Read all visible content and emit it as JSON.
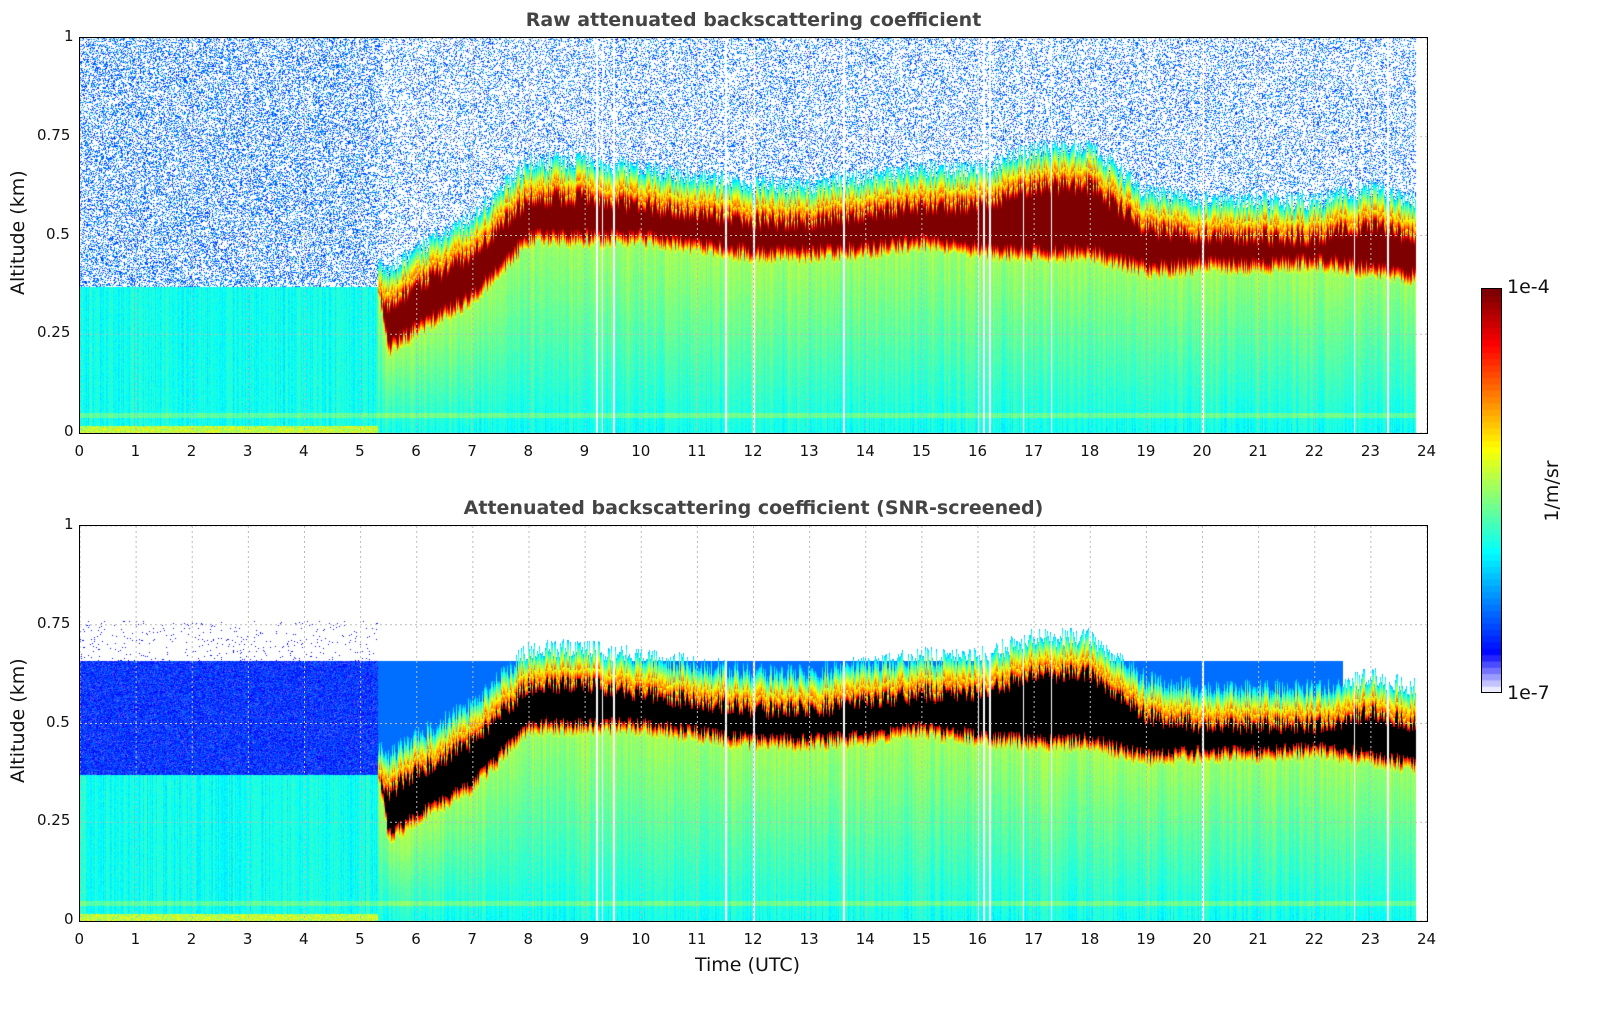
{
  "chart_data": [
    {
      "type": "heatmap",
      "title": "Raw attenuated backscattering coefficient",
      "xlabel": "",
      "ylabel": "Altitude (km)",
      "xlim": [
        0,
        24
      ],
      "ylim": [
        0,
        1
      ],
      "xticks": [
        "0",
        "1",
        "2",
        "3",
        "4",
        "5",
        "6",
        "7",
        "8",
        "9",
        "10",
        "11",
        "12",
        "13",
        "14",
        "15",
        "16",
        "17",
        "18",
        "19",
        "20",
        "21",
        "22",
        "23",
        "24"
      ],
      "yticks": [
        "0",
        "0.25",
        "0.5",
        "0.75",
        "1"
      ],
      "grid": true,
      "screened": false
    },
    {
      "type": "heatmap",
      "title": "Attenuated backscattering coefficient (SNR-screened)",
      "xlabel": "Time (UTC)",
      "ylabel": "Altitude (km)",
      "xlim": [
        0,
        24
      ],
      "ylim": [
        0,
        1
      ],
      "xticks": [
        "0",
        "1",
        "2",
        "3",
        "4",
        "5",
        "6",
        "7",
        "8",
        "9",
        "10",
        "11",
        "12",
        "13",
        "14",
        "15",
        "16",
        "17",
        "18",
        "19",
        "20",
        "21",
        "22",
        "23",
        "24"
      ],
      "yticks": [
        "0",
        "0.25",
        "0.5",
        "0.75",
        "1"
      ],
      "grid": true,
      "screened": true
    }
  ],
  "colorbar": {
    "label": "1/m/sr",
    "max_label": "1e-4",
    "min_label": "1e-7",
    "log10_range": [
      -7,
      -4
    ],
    "colormap": "jet"
  },
  "layer_profile": {
    "hours": [
      0,
      5.3,
      5.5,
      6,
      7,
      8,
      9,
      10,
      11,
      12,
      13,
      14,
      15,
      16,
      17,
      18,
      19,
      20,
      21,
      22,
      23,
      23.8
    ],
    "base_km": [
      0.37,
      0.37,
      0.2,
      0.25,
      0.33,
      0.48,
      0.48,
      0.48,
      0.46,
      0.44,
      0.44,
      0.45,
      0.47,
      0.45,
      0.44,
      0.44,
      0.4,
      0.41,
      0.41,
      0.42,
      0.4,
      0.38
    ],
    "top_km": [
      0.37,
      0.37,
      0.35,
      0.4,
      0.48,
      0.62,
      0.62,
      0.6,
      0.58,
      0.56,
      0.56,
      0.58,
      0.6,
      0.6,
      0.65,
      0.65,
      0.54,
      0.52,
      0.52,
      0.52,
      0.55,
      0.52
    ],
    "data_end_hour": 23.8,
    "gap_hours": [
      9.2,
      9.3,
      9.5,
      11.5,
      12.0,
      13.6,
      16.0,
      16.1,
      16.2,
      16.8,
      17.3,
      20.0,
      22.7,
      23.3
    ]
  }
}
